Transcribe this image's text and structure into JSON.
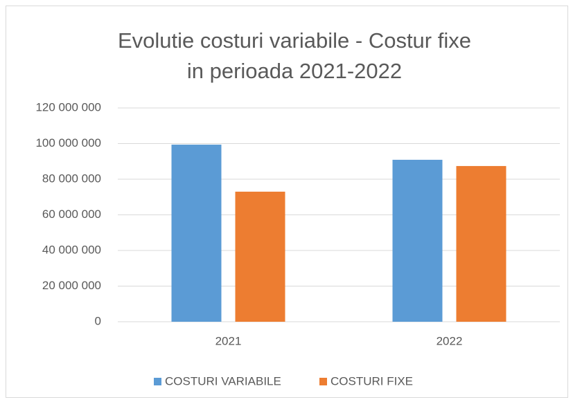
{
  "chart_data": {
    "type": "bar",
    "title": [
      "Evolutie costuri variabile - Costur fixe",
      "in perioada 2021-2022"
    ],
    "categories": [
      "2021",
      "2022"
    ],
    "series": [
      {
        "name": "COSTURI VARIABILE",
        "color": "#5b9bd5",
        "values": [
          99400000,
          90900000
        ]
      },
      {
        "name": "COSTURI FIXE",
        "color": "#ed7d31",
        "values": [
          73000000,
          87400000
        ]
      }
    ],
    "ylim": [
      0,
      120000000
    ],
    "yticks": [
      0,
      {
        "value": 20000000,
        "label": "20 000 000"
      },
      {
        "value": 40000000,
        "label": "40 000 000"
      },
      {
        "value": 60000000,
        "label": "60 000 000"
      },
      {
        "value": 80000000,
        "label": "80 000 000"
      },
      {
        "value": 100000000,
        "label": "100 000 000"
      },
      {
        "value": 120000000,
        "label": "120 000 000"
      }
    ],
    "grid": true,
    "legend": "bottom"
  }
}
